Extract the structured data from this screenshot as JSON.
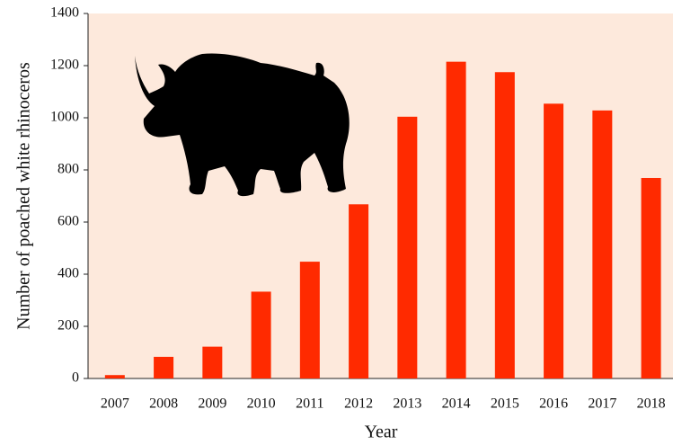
{
  "chart_data": {
    "type": "bar",
    "x_label": "Year",
    "y_label": "Number of poached white rhinoceros",
    "categories": [
      "2007",
      "2008",
      "2009",
      "2010",
      "2011",
      "2012",
      "2013",
      "2014",
      "2015",
      "2016",
      "2017",
      "2018"
    ],
    "values": [
      13,
      83,
      122,
      333,
      448,
      668,
      1004,
      1215,
      1175,
      1054,
      1028,
      769
    ],
    "color": "#ff2a00",
    "ylim": [
      0,
      1400
    ],
    "yticks": [
      0,
      200,
      400,
      600,
      800,
      1000,
      1200,
      1400
    ],
    "grid": false
  }
}
